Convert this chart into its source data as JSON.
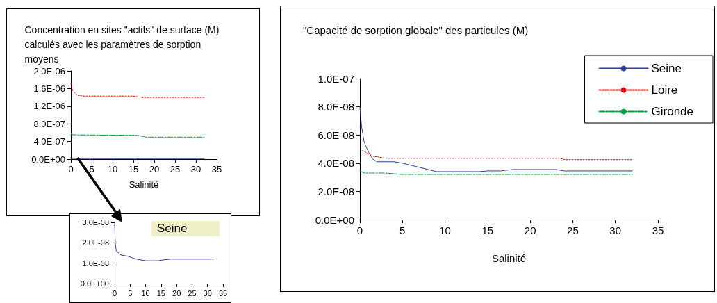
{
  "chart_data": [
    {
      "type": "line",
      "title": "Concentration en sites \"actifs\" de surface (M) calculés avec les paramètres de sorption moyens",
      "xlabel": "Salinité",
      "xlim": [
        0,
        35
      ],
      "xticks": [
        0,
        5,
        10,
        15,
        20,
        25,
        30,
        35
      ],
      "ylim": [
        0,
        2e-06
      ],
      "yticks": [
        {
          "value": 0,
          "label": "0.0E+00"
        },
        {
          "value": 4e-07,
          "label": "4.0E-07"
        },
        {
          "value": 8e-07,
          "label": "8.0E-07"
        },
        {
          "value": 1.2e-06,
          "label": "1.2E-06"
        },
        {
          "value": 1.6e-06,
          "label": "1.6E-06"
        },
        {
          "value": 2e-06,
          "label": "2.0E-06"
        }
      ],
      "marker": "none",
      "series": [
        {
          "color": "#2f3fa0",
          "line_style": "solid",
          "x": [
            0,
            0.2,
            0.5,
            2,
            6,
            10,
            14,
            18,
            32
          ],
          "values": [
            2.9e-08,
            2e-08,
            1.6e-08,
            1.4e-08,
            1.25e-08,
            1.12e-08,
            1.12e-08,
            1.2e-08,
            1.2e-08
          ]
        },
        {
          "color": "#ff0000",
          "line_style": "dotted",
          "x": [
            0,
            0.5,
            1.5,
            3,
            15,
            17,
            32
          ],
          "values": [
            1.7e-06,
            1.55e-06,
            1.45e-06,
            1.43e-06,
            1.43e-06,
            1.4e-06,
            1.4e-06
          ]
        },
        {
          "color": "#00a040",
          "line_style": "dashed",
          "x": [
            0,
            0.5,
            16,
            18,
            32
          ],
          "values": [
            5.8e-07,
            5.5e-07,
            5.4e-07,
            5e-07,
            5e-07
          ]
        }
      ]
    },
    {
      "type": "line",
      "annotations": [
        "Seine"
      ],
      "xlim": [
        0,
        35
      ],
      "xticks": [
        0,
        5,
        10,
        15,
        20,
        25,
        30,
        35
      ],
      "ylim": [
        0,
        3e-08
      ],
      "yticks": [
        {
          "value": 0,
          "label": "0.0E+00"
        },
        {
          "value": 1e-08,
          "label": "1.0E-08"
        },
        {
          "value": 2e-08,
          "label": "2.0E-08"
        },
        {
          "value": 3e-08,
          "label": "3.0E-08"
        }
      ],
      "marker": "none",
      "series": [
        {
          "color": "#2f3fa0",
          "line_style": "solid",
          "x": [
            0,
            0.2,
            0.5,
            2,
            4,
            6,
            7,
            10,
            14,
            16,
            18,
            32
          ],
          "values": [
            2.9e-08,
            2e-08,
            1.6e-08,
            1.4e-08,
            1.35e-08,
            1.25e-08,
            1.2e-08,
            1.12e-08,
            1.12e-08,
            1.17e-08,
            1.2e-08,
            1.2e-08
          ]
        }
      ]
    },
    {
      "type": "line",
      "title": "\"Capacité de sorption globale\" des particules (M)",
      "xlabel": "Salinité",
      "xlim": [
        0,
        35
      ],
      "xticks": [
        0,
        5,
        10,
        15,
        20,
        25,
        30,
        35
      ],
      "ylim": [
        0,
        1e-07
      ],
      "yticks": [
        {
          "value": 0,
          "label": "0.0E+00"
        },
        {
          "value": 2e-08,
          "label": "2.0E-08"
        },
        {
          "value": 4e-08,
          "label": "4.0E-08"
        },
        {
          "value": 6e-08,
          "label": "6.0E-08"
        },
        {
          "value": 8e-08,
          "label": "8.0E-08"
        },
        {
          "value": 1e-07,
          "label": "1.0E-07"
        }
      ],
      "marker": "none",
      "legend": "top right",
      "series": [
        {
          "name": "Seine",
          "color": "#2f3fa0",
          "line_style": "solid",
          "x": [
            0,
            0.2,
            0.5,
            1,
            1.5,
            2,
            4,
            5,
            7,
            9,
            14,
            15,
            16.5,
            18,
            23,
            24,
            32
          ],
          "values": [
            8e-08,
            6.6e-08,
            5.5e-08,
            4.8e-08,
            4.3e-08,
            4.1e-08,
            4.1e-08,
            4e-08,
            3.7e-08,
            3.4e-08,
            3.4e-08,
            3.45e-08,
            3.45e-08,
            3.55e-08,
            3.55e-08,
            3.45e-08,
            3.45e-08
          ]
        },
        {
          "name": "Loire",
          "color": "#ff0000",
          "line_style": "dotted",
          "x": [
            0.3,
            1.5,
            3,
            23.5,
            24,
            32
          ],
          "values": [
            4.9e-08,
            4.5e-08,
            4.35e-08,
            4.35e-08,
            4.25e-08,
            4.25e-08
          ]
        },
        {
          "name": "Gironde",
          "color": "#00a040",
          "line_style": "dashed",
          "x": [
            0,
            0.5,
            3,
            5,
            32
          ],
          "values": [
            3.45e-08,
            3.3e-08,
            3.3e-08,
            3.2e-08,
            3.2e-08
          ]
        }
      ]
    }
  ]
}
